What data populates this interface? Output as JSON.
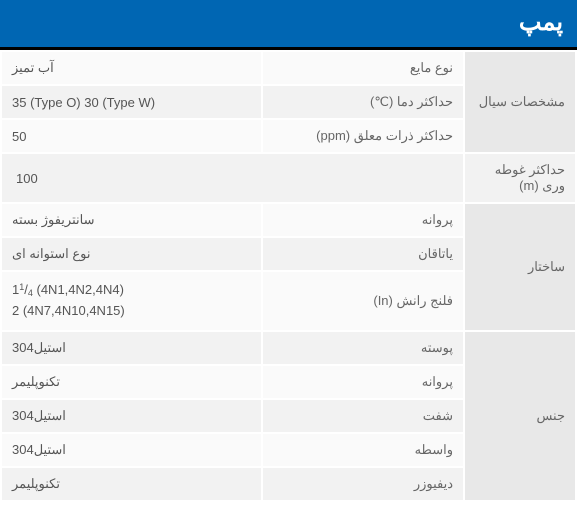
{
  "title": "پمپ",
  "colors": {
    "header_bg": "#0066b3",
    "header_border": "#000000",
    "group_bg": "#e8e8e8",
    "row_a": "#f2f2f2",
    "row_b": "#fafafa",
    "text": "#555555"
  },
  "groups": [
    {
      "name": "مشخصات سیال",
      "rows": [
        {
          "label": "نوع مایع",
          "value": "آب تمیز"
        },
        {
          "label": "حداکثر دما (℃)",
          "value": "35 (Type O)   30 (Type W)"
        },
        {
          "label": "حداکثر ذرات معلق (ppm)",
          "value": "50"
        }
      ]
    }
  ],
  "single": {
    "label": "حداکثر غوطه وری (m)",
    "value": "100"
  },
  "structure": {
    "name": "ساختار",
    "rows": [
      {
        "label": "پروانه",
        "value": "سانتریفوژ بسته"
      },
      {
        "label": "یاتاقان",
        "value": "نوع استوانه ای"
      },
      {
        "label": "فلنج رانش (In)",
        "value_html": true,
        "line1_pre": "1",
        "line1_sup": "1",
        "line1_sub": "4",
        "line1_post": " (4N1,4N2,4N4)",
        "line2": "2 (4N7,4N10,4N15)"
      }
    ]
  },
  "material": {
    "name": "جنس",
    "rows": [
      {
        "label": "پوسته",
        "value": "استیل304"
      },
      {
        "label": "پروانه",
        "value": "تکنوپلیمر"
      },
      {
        "label": "شفت",
        "value": "استیل304"
      },
      {
        "label": "واسطه",
        "value": "استیل304"
      },
      {
        "label": "دیفیوزر",
        "value": "تکنوپلیمر"
      }
    ]
  }
}
